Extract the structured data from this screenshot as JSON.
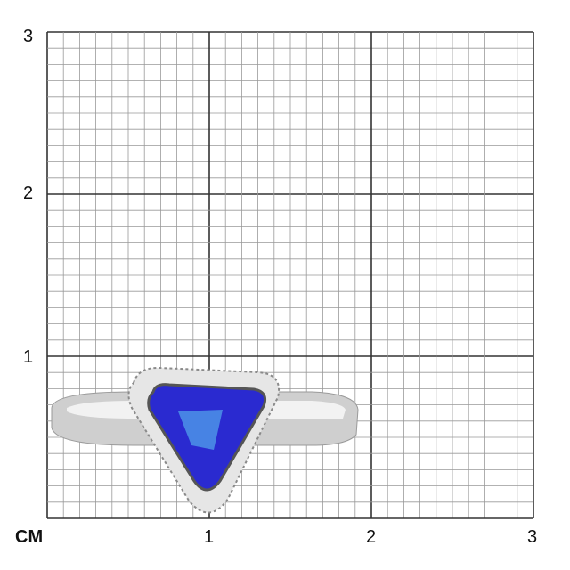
{
  "grid": {
    "unit_label": "CM",
    "x_ticks": [
      "1",
      "2",
      "3"
    ],
    "y_ticks": [
      "1",
      "2",
      "3"
    ],
    "subdivisions_per_unit": 10,
    "range_cm": 3
  },
  "ring": {
    "gem_color": "#2a2ad0",
    "gem_highlight": "#4f9ae8",
    "metal_color": "#d9d9d9"
  }
}
